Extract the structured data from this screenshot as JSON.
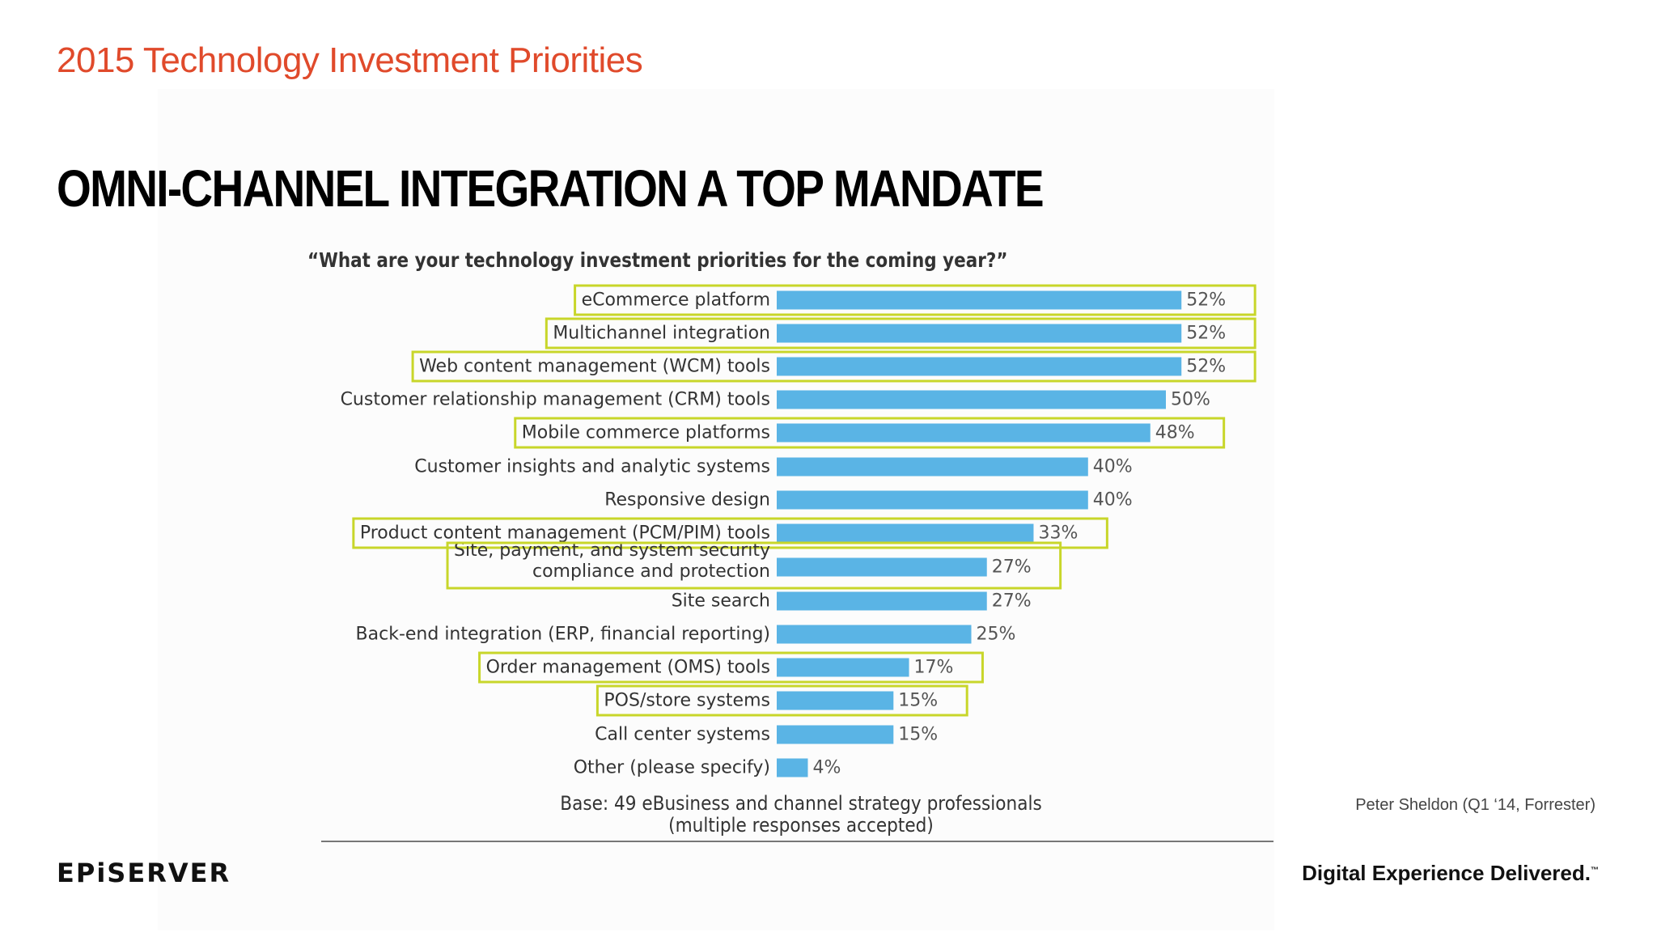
{
  "slide": {
    "title": "2015 Technology Investment Priorities",
    "headline": "OMNI-CHANNEL INTEGRATION A TOP MANDATE",
    "source": "Peter Sheldon (Q1 ‘14, Forrester)",
    "logo_text": "EPiSERVER",
    "tagline": "Digital Experience Delivered.",
    "tagline_mark": "™"
  },
  "colors": {
    "title": "#e04a2b",
    "bar": "#5ab4e5",
    "highlight_box": "#c8d62a"
  },
  "chart_data": {
    "type": "bar",
    "orientation": "horizontal",
    "title": "“What are your technology investment priorities for the coming year?”",
    "note_lines": [
      "Base: 49 eBusiness and channel strategy professionals",
      "(multiple responses accepted)"
    ],
    "categories": [
      "eCommerce platform",
      "Multichannel integration",
      "Web content management (WCM) tools",
      "Customer relationship management (CRM) tools",
      "Mobile commerce platforms",
      "Customer insights and analytic systems",
      "Responsive design",
      "Product content management (PCM/PIM) tools",
      "Site, payment, and system security compliance and protection",
      "Site search",
      "Back-end integration (ERP, financial reporting)",
      "Order management (OMS) tools",
      "POS/store systems",
      "Call center systems",
      "Other (please specify)"
    ],
    "category_label_lines": [
      [
        "eCommerce platform"
      ],
      [
        "Multichannel integration"
      ],
      [
        "Web content management (WCM) tools"
      ],
      [
        "Customer relationship management (CRM) tools"
      ],
      [
        "Mobile commerce platforms"
      ],
      [
        "Customer insights and analytic systems"
      ],
      [
        "Responsive design"
      ],
      [
        "Product content management (PCM/PIM) tools"
      ],
      [
        "Site, payment, and system security",
        "compliance and protection"
      ],
      [
        "Site search"
      ],
      [
        "Back-end integration (ERP, financial reporting)"
      ],
      [
        "Order management (OMS) tools"
      ],
      [
        "POS/store systems"
      ],
      [
        "Call center systems"
      ],
      [
        "Other (please specify)"
      ]
    ],
    "values": [
      52,
      52,
      52,
      50,
      48,
      40,
      40,
      33,
      27,
      27,
      25,
      17,
      15,
      15,
      4
    ],
    "value_labels": [
      "52%",
      "52%",
      "52%",
      "50%",
      "48%",
      "40%",
      "40%",
      "33%",
      "27%",
      "27%",
      "25%",
      "17%",
      "15%",
      "15%",
      "4%"
    ],
    "highlighted": [
      true,
      true,
      true,
      false,
      true,
      false,
      false,
      true,
      true,
      false,
      false,
      true,
      true,
      false,
      false
    ],
    "unit": "%",
    "xlim": [
      0,
      100
    ],
    "grid": false,
    "legend": "none"
  }
}
